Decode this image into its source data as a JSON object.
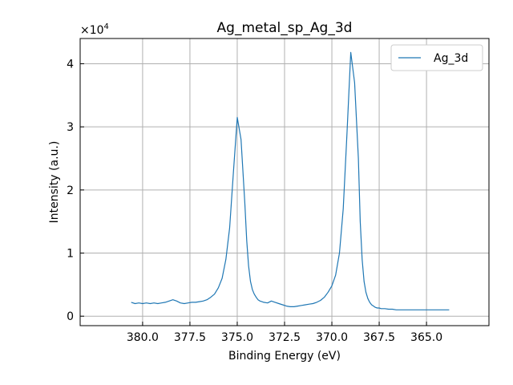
{
  "chart_data": {
    "type": "line",
    "title": "Ag_metal_sp_Ag_3d",
    "xlabel": "Binding Energy (eV)",
    "ylabel": "Intensity (a.u.)",
    "y_multiplier_label": "×10",
    "y_multiplier_exponent": "4",
    "xlim": [
      383.3,
      361.7
    ],
    "ylim": [
      -0.15,
      4.4
    ],
    "x_reversed": true,
    "grid": true,
    "legend_placement": "top-right",
    "x_ticks": [
      380.0,
      377.5,
      375.0,
      372.5,
      370.0,
      367.5,
      365.0
    ],
    "x_tick_labels": [
      "380.0",
      "377.5",
      "375.0",
      "372.5",
      "370.0",
      "367.5",
      "365.0"
    ],
    "y_ticks": [
      0,
      1,
      2,
      3,
      4
    ],
    "y_tick_labels": [
      "0",
      "1",
      "2",
      "3",
      "4"
    ],
    "color": "#1f77b4",
    "series": [
      {
        "name": "Ag_3d",
        "x": [
          380.6,
          380.4,
          380.2,
          380.0,
          379.8,
          379.6,
          379.4,
          379.2,
          379.0,
          378.8,
          378.6,
          378.4,
          378.2,
          378.0,
          377.8,
          377.6,
          377.4,
          377.2,
          377.0,
          376.8,
          376.6,
          376.4,
          376.2,
          376.0,
          375.8,
          375.6,
          375.4,
          375.2,
          375.0,
          374.8,
          374.6,
          374.5,
          374.4,
          374.3,
          374.2,
          374.1,
          374.0,
          373.9,
          373.8,
          373.7,
          373.6,
          373.4,
          373.2,
          373.0,
          372.8,
          372.6,
          372.4,
          372.2,
          372.0,
          371.8,
          371.6,
          371.4,
          371.2,
          371.0,
          370.8,
          370.6,
          370.4,
          370.2,
          370.0,
          369.8,
          369.6,
          369.4,
          369.2,
          369.0,
          368.8,
          368.6,
          368.5,
          368.4,
          368.3,
          368.2,
          368.1,
          368.0,
          367.9,
          367.8,
          367.7,
          367.6,
          367.5,
          367.4,
          367.2,
          367.0,
          366.8,
          366.6,
          366.4,
          366.2,
          366.0,
          365.8,
          365.6,
          365.4,
          365.2,
          365.0,
          364.8,
          364.6,
          364.4,
          364.2,
          364.0,
          363.8
        ],
        "y": [
          0.22,
          0.2,
          0.21,
          0.2,
          0.21,
          0.2,
          0.21,
          0.2,
          0.21,
          0.22,
          0.24,
          0.26,
          0.24,
          0.21,
          0.2,
          0.21,
          0.22,
          0.22,
          0.23,
          0.24,
          0.26,
          0.3,
          0.35,
          0.45,
          0.6,
          0.9,
          1.4,
          2.3,
          3.15,
          2.8,
          1.8,
          1.2,
          0.8,
          0.55,
          0.42,
          0.35,
          0.3,
          0.26,
          0.24,
          0.23,
          0.22,
          0.21,
          0.24,
          0.22,
          0.2,
          0.18,
          0.16,
          0.15,
          0.15,
          0.16,
          0.17,
          0.18,
          0.19,
          0.2,
          0.22,
          0.25,
          0.3,
          0.38,
          0.48,
          0.65,
          1.0,
          1.7,
          2.9,
          4.18,
          3.7,
          2.5,
          1.5,
          0.9,
          0.55,
          0.38,
          0.28,
          0.22,
          0.18,
          0.16,
          0.14,
          0.13,
          0.13,
          0.12,
          0.12,
          0.11,
          0.11,
          0.1,
          0.1,
          0.1,
          0.1,
          0.1,
          0.1,
          0.1,
          0.1,
          0.1,
          0.1,
          0.1,
          0.1,
          0.1,
          0.1,
          0.1
        ]
      }
    ]
  }
}
